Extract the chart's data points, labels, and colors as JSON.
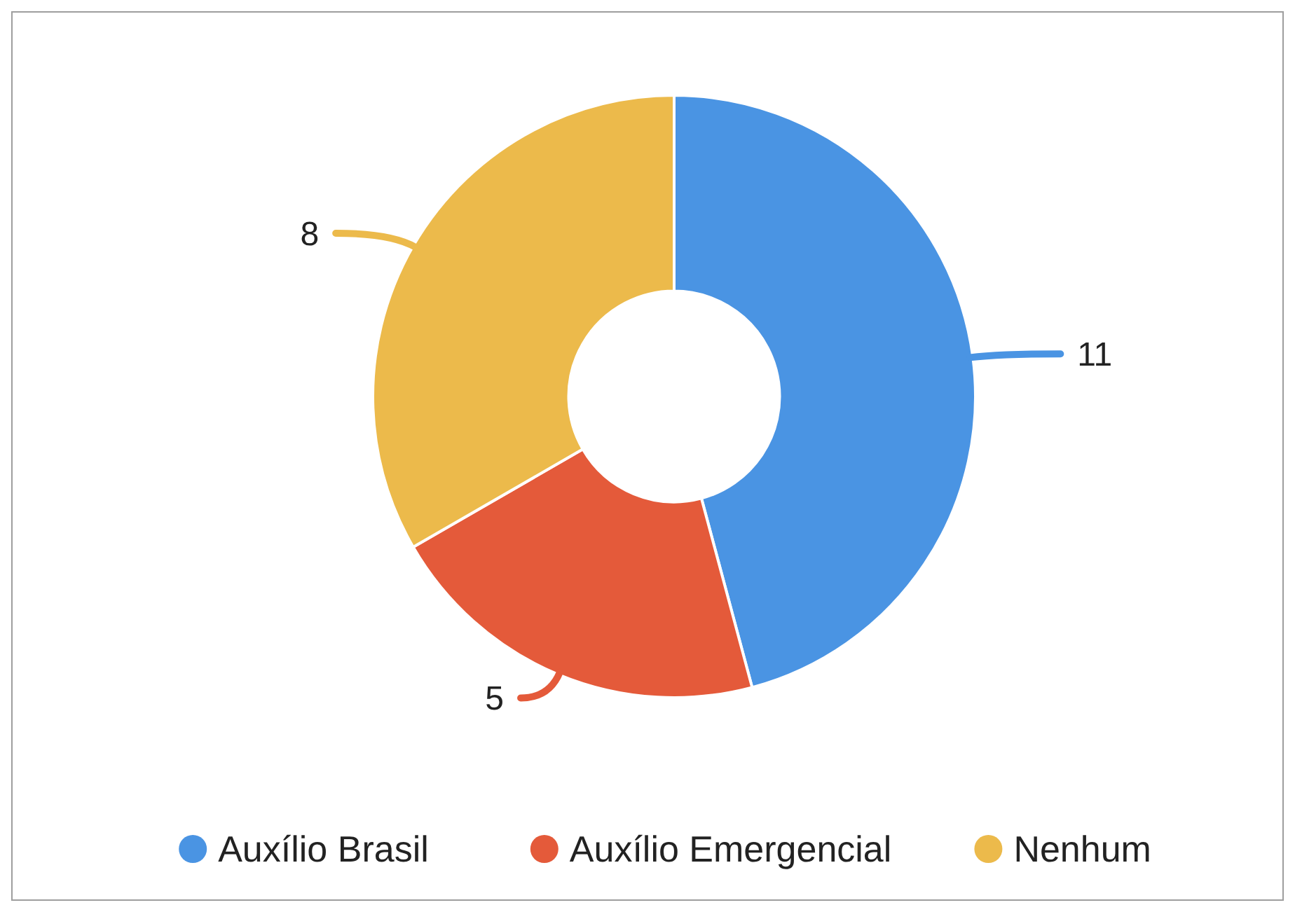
{
  "chart_data": {
    "type": "donut",
    "categories": [
      "Auxílio Brasil",
      "Auxílio Emergencial",
      "Nenhum"
    ],
    "values": [
      11,
      5,
      8
    ],
    "colors": [
      "#4a94e3",
      "#e45a3a",
      "#ecba4b"
    ],
    "data_labels": true,
    "legend": "bottom"
  }
}
